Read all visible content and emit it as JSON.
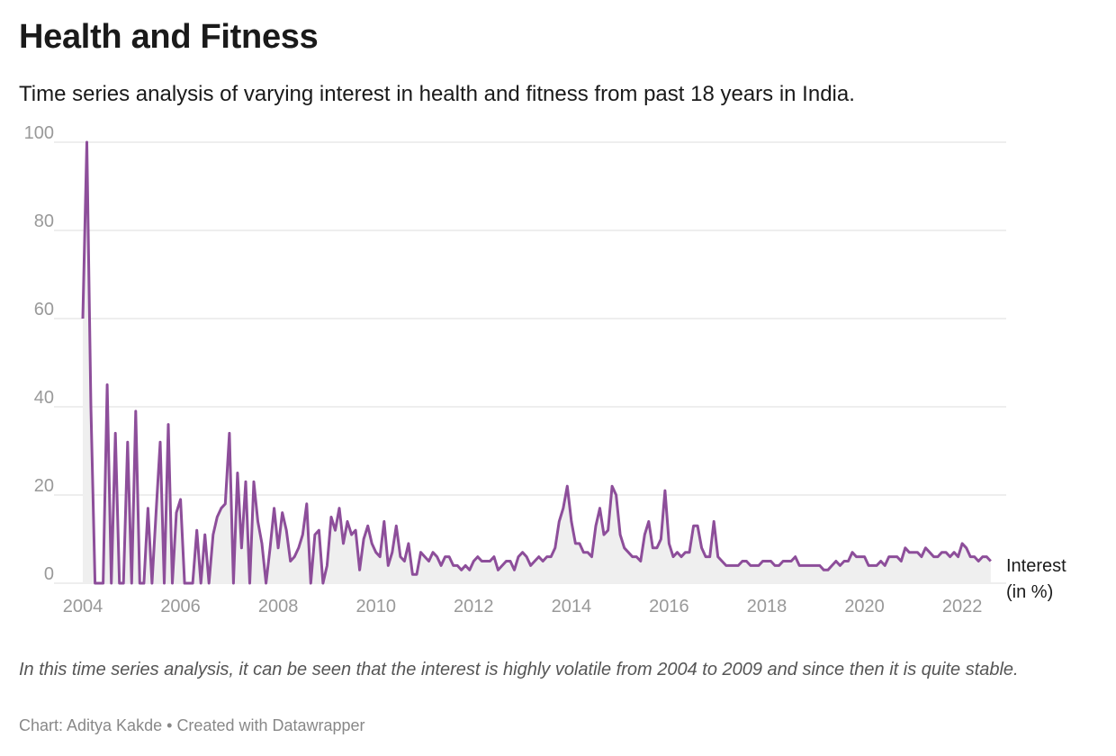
{
  "title": "Health and Fitness",
  "subtitle": "Time series analysis of varying interest in health and fitness from past 18 years in India.",
  "notes": "In this time series analysis, it can be seen that the interest is highly volatile from 2004 to 2009 and since then it is quite stable.",
  "footer": {
    "credit": "Chart: Aditya Kakde",
    "separator": "•",
    "tool": "Created with Datawrapper"
  },
  "colors": {
    "line": "#8d4e9a",
    "area": "#efefef",
    "grid": "#dddddd",
    "tick_text": "#999999"
  },
  "chart_data": {
    "type": "line",
    "series_label_lines": [
      "Interest",
      "(in %)"
    ],
    "xlabel": "",
    "ylabel": "",
    "x_ticks": [
      "2004",
      "2006",
      "2008",
      "2010",
      "2012",
      "2014",
      "2016",
      "2018",
      "2020",
      "2022"
    ],
    "y_ticks": [
      "0",
      "20",
      "40",
      "60",
      "80",
      "100"
    ],
    "ylim": [
      0,
      100
    ],
    "xlim": [
      "2004-01",
      "2022-12"
    ],
    "grid": true,
    "start": "2004-01",
    "frequency": "monthly",
    "values": [
      60,
      100,
      40,
      0,
      0,
      0,
      45,
      0,
      34,
      0,
      0,
      32,
      0,
      39,
      0,
      0,
      17,
      0,
      16,
      32,
      0,
      36,
      0,
      16,
      19,
      0,
      0,
      0,
      12,
      0,
      11,
      0,
      11,
      15,
      17,
      18,
      34,
      0,
      25,
      8,
      23,
      0,
      23,
      14,
      9,
      0,
      8,
      17,
      8,
      16,
      12,
      5,
      6,
      8,
      11,
      18,
      0,
      11,
      12,
      0,
      4,
      15,
      12,
      17,
      9,
      14,
      11,
      12,
      3,
      10,
      13,
      9,
      7,
      6,
      14,
      4,
      7,
      13,
      6,
      5,
      9,
      2,
      2,
      7,
      6,
      5,
      7,
      6,
      4,
      6,
      6,
      4,
      4,
      3,
      4,
      3,
      5,
      6,
      5,
      5,
      5,
      6,
      3,
      4,
      5,
      5,
      3,
      6,
      7,
      6,
      4,
      5,
      6,
      5,
      6,
      6,
      8,
      14,
      17,
      22,
      14,
      9,
      9,
      7,
      7,
      6,
      13,
      17,
      11,
      12,
      22,
      20,
      11,
      8,
      7,
      6,
      6,
      5,
      11,
      14,
      8,
      8,
      10,
      21,
      9,
      6,
      7,
      6,
      7,
      7,
      13,
      13,
      8,
      6,
      6,
      14,
      6,
      5,
      4,
      4,
      4,
      4,
      5,
      5,
      4,
      4,
      4,
      5,
      5,
      5,
      4,
      4,
      5,
      5,
      5,
      6,
      4,
      4,
      4,
      4,
      4,
      4,
      3,
      3,
      4,
      5,
      4,
      5,
      5,
      7,
      6,
      6,
      6,
      4,
      4,
      4,
      5,
      4,
      6,
      6,
      6,
      5,
      8,
      7,
      7,
      7,
      6,
      8,
      7,
      6,
      6,
      7,
      7,
      6,
      7,
      6,
      9,
      8,
      6,
      6,
      5,
      6,
      6,
      5
    ]
  }
}
